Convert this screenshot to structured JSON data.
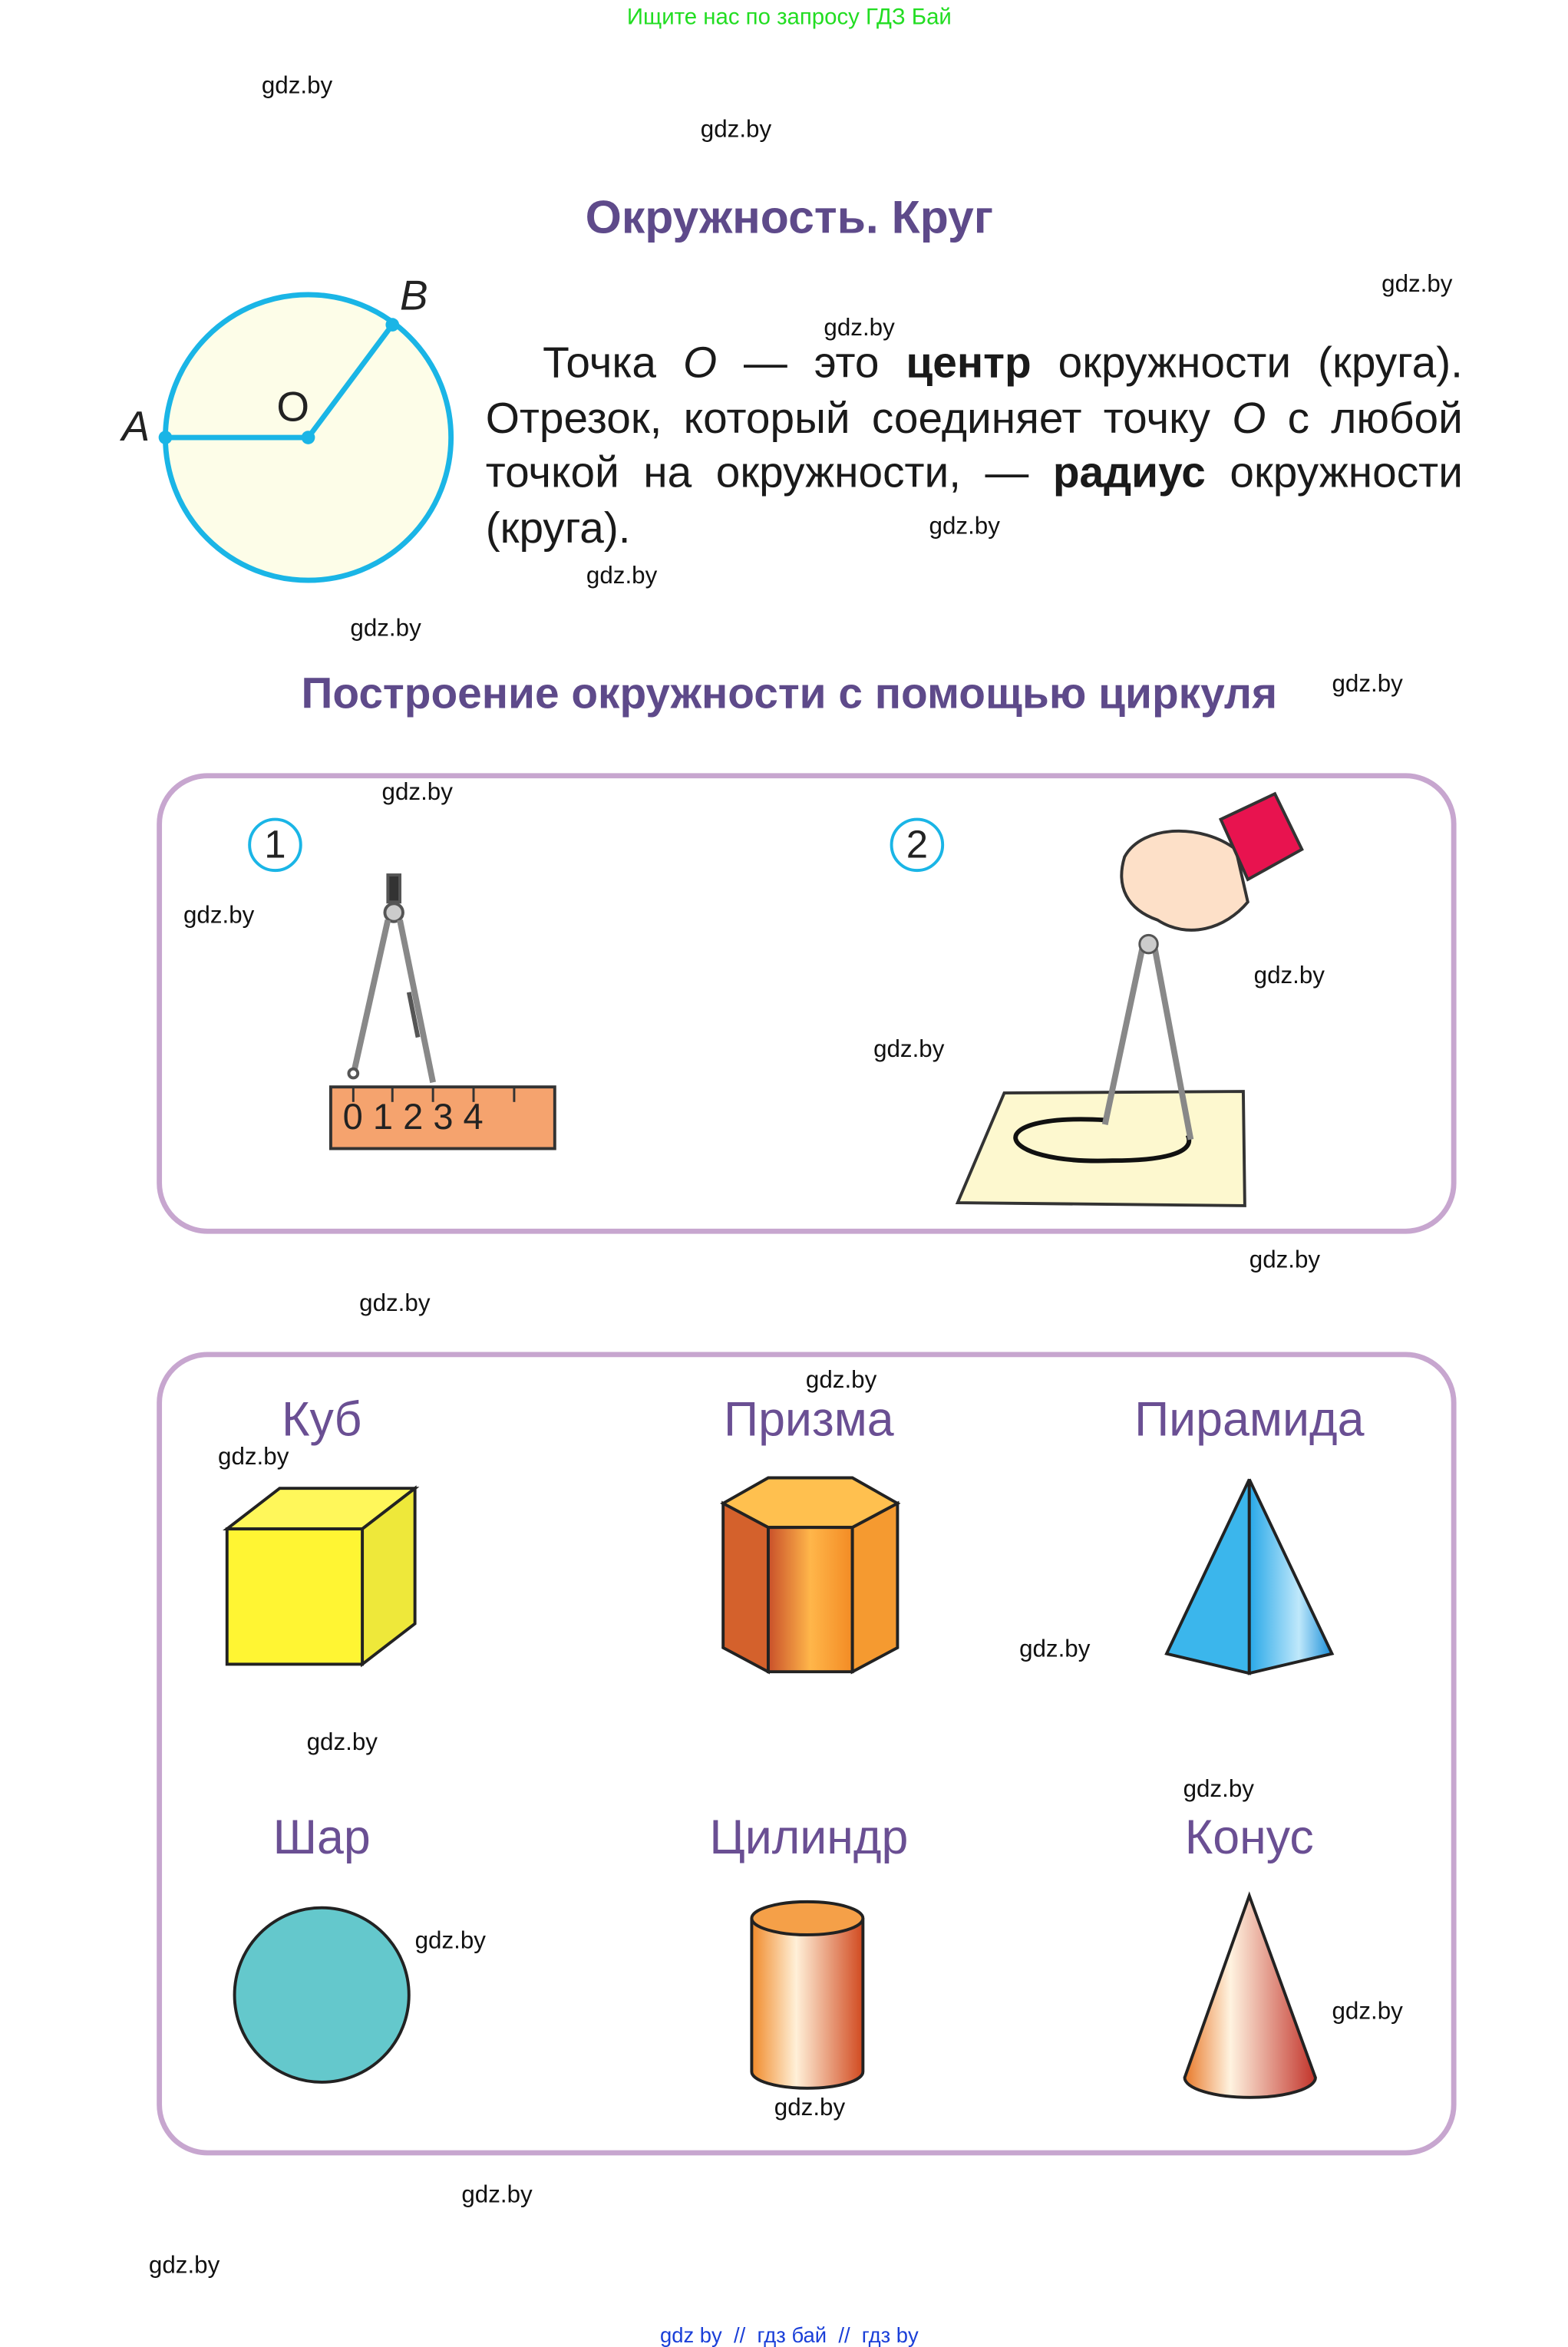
{
  "header": {
    "search_hint": "Ищите нас по запросу ГДЗ Бай"
  },
  "title": "Окружность. Круг",
  "circle_figure": {
    "labels": {
      "a": "A",
      "o": "O",
      "b": "B"
    },
    "stroke_color": "#1ab5e6",
    "fill_color": "#fdfde8"
  },
  "paragraph": {
    "p1": "Точка ",
    "o1": "O",
    "p2": " — это ",
    "bold1": "центр",
    "p3": " окружности (круга). Отрезок, который соединяет точку ",
    "o2": "O",
    "p4": " с любой точкой на окружности, — ",
    "bold2": "радиус",
    "p5": " окружности (круга)."
  },
  "section_title": "Построение окружности с помощью циркуля",
  "steps": [
    {
      "number": "1"
    },
    {
      "number": "2"
    }
  ],
  "ruler": {
    "digits": [
      "0",
      "1",
      "2",
      "3",
      "4"
    ],
    "color": "#f5a36e"
  },
  "shapes": [
    {
      "label": "Куб"
    },
    {
      "label": "Призма"
    },
    {
      "label": "Пирамида"
    },
    {
      "label": "Шар"
    },
    {
      "label": "Цилиндр"
    },
    {
      "label": "Конус"
    }
  ],
  "watermark": "gdz.by",
  "footer": "gdz by  //  гдз бай  //  гдз by",
  "colors": {
    "heading": "#5e4a8a",
    "frame": "#c7a6cf",
    "footer": "#1a3fd8",
    "top_hint": "#22dd22"
  }
}
